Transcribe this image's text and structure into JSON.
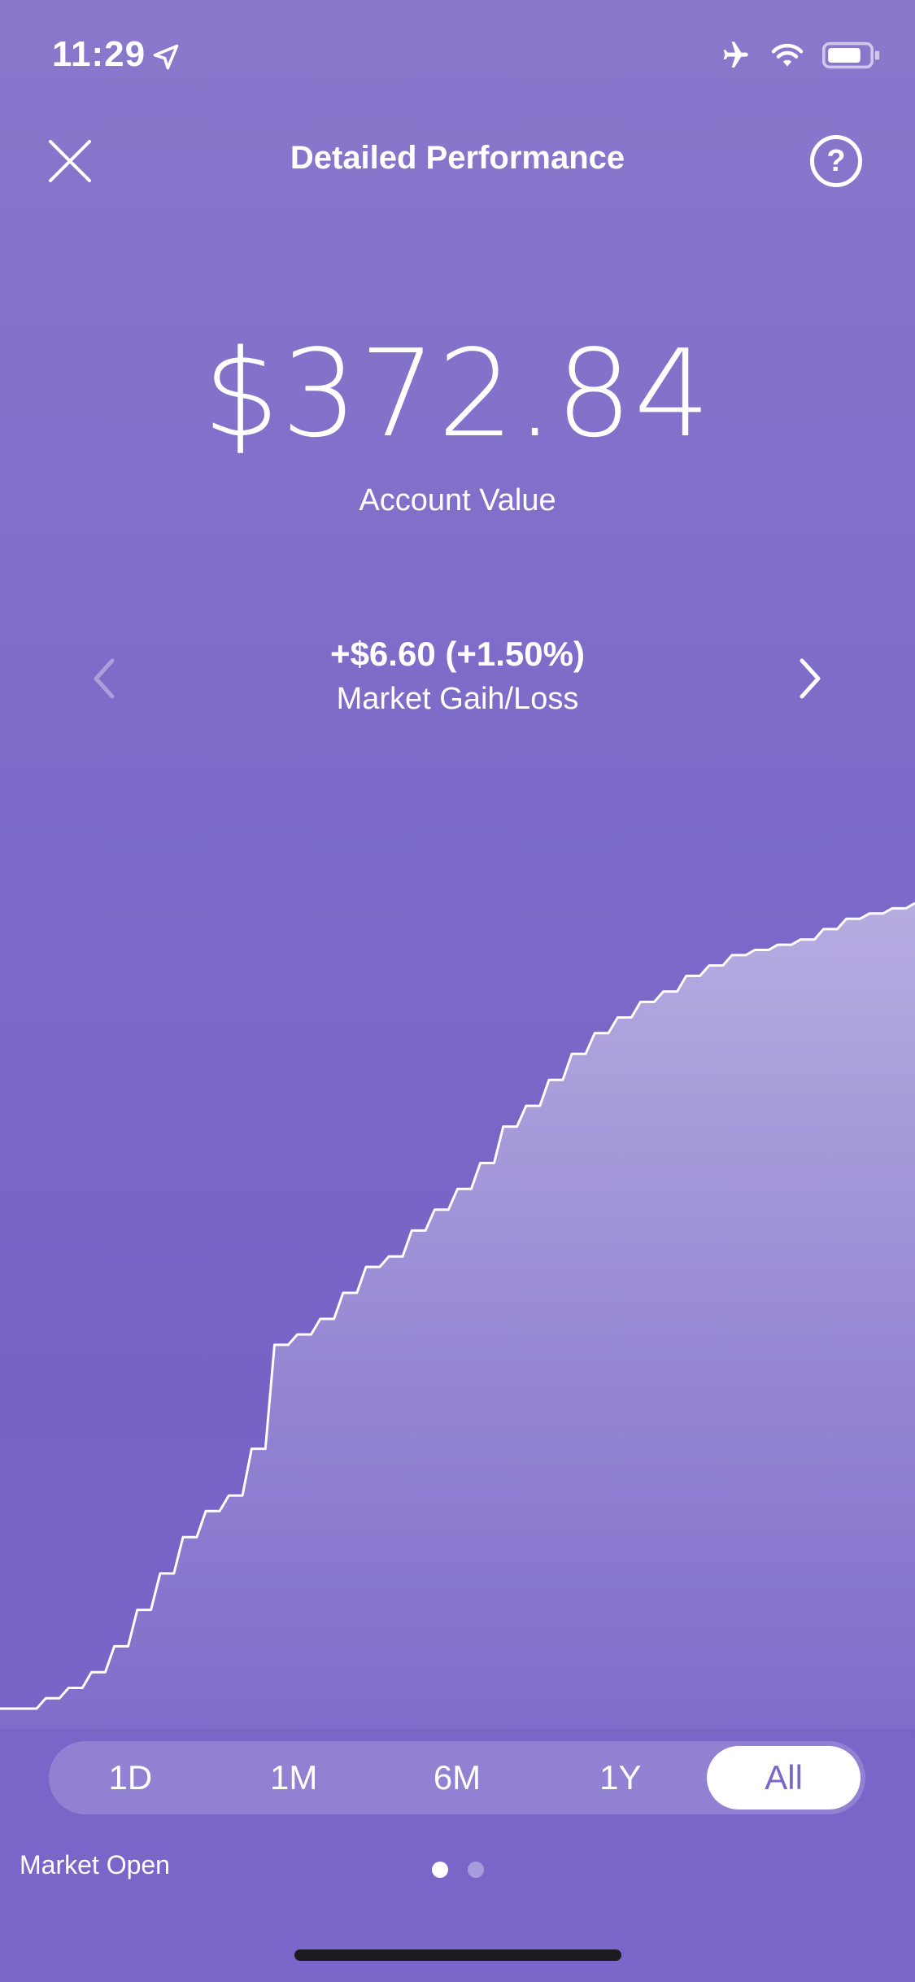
{
  "status_bar": {
    "time": "11:29",
    "location_icon": "location-arrow-icon",
    "airplane_icon": "airplane-icon",
    "wifi_icon": "wifi-icon",
    "battery_icon": "battery-icon"
  },
  "header": {
    "title": "Detailed Performance",
    "close_icon": "close-icon",
    "help_label": "?"
  },
  "account": {
    "value": "$372.84",
    "label": "Account Value"
  },
  "performance": {
    "gain": "+$6.60 (+1.50%)",
    "label": "Market Gaih/Loss",
    "prev_icon": "chevron-left-icon",
    "next_icon": "chevron-right-icon"
  },
  "chart_data": {
    "type": "area",
    "x": [
      0,
      1,
      2,
      3,
      4,
      5,
      6,
      7,
      8,
      9,
      10,
      11,
      12,
      13,
      14,
      15,
      16,
      17,
      18,
      19,
      20,
      21,
      22,
      23,
      24,
      25,
      26,
      27,
      28,
      29,
      30,
      31,
      32,
      33,
      34,
      35,
      36,
      37,
      38,
      39,
      40
    ],
    "values": [
      0,
      0,
      2,
      4,
      7,
      12,
      19,
      26,
      33,
      38,
      41,
      50,
      70,
      72,
      75,
      80,
      85,
      87,
      92,
      96,
      100,
      105,
      112,
      116,
      121,
      126,
      130,
      133,
      136,
      138,
      141,
      143,
      145,
      146,
      147,
      148,
      150,
      152,
      153,
      154,
      155
    ]
  },
  "range_selector": {
    "options": [
      "1D",
      "1M",
      "6M",
      "1Y",
      "All"
    ],
    "selected": "All"
  },
  "footer": {
    "market_status": "Market Open",
    "pages": 2,
    "current_page": 1
  }
}
